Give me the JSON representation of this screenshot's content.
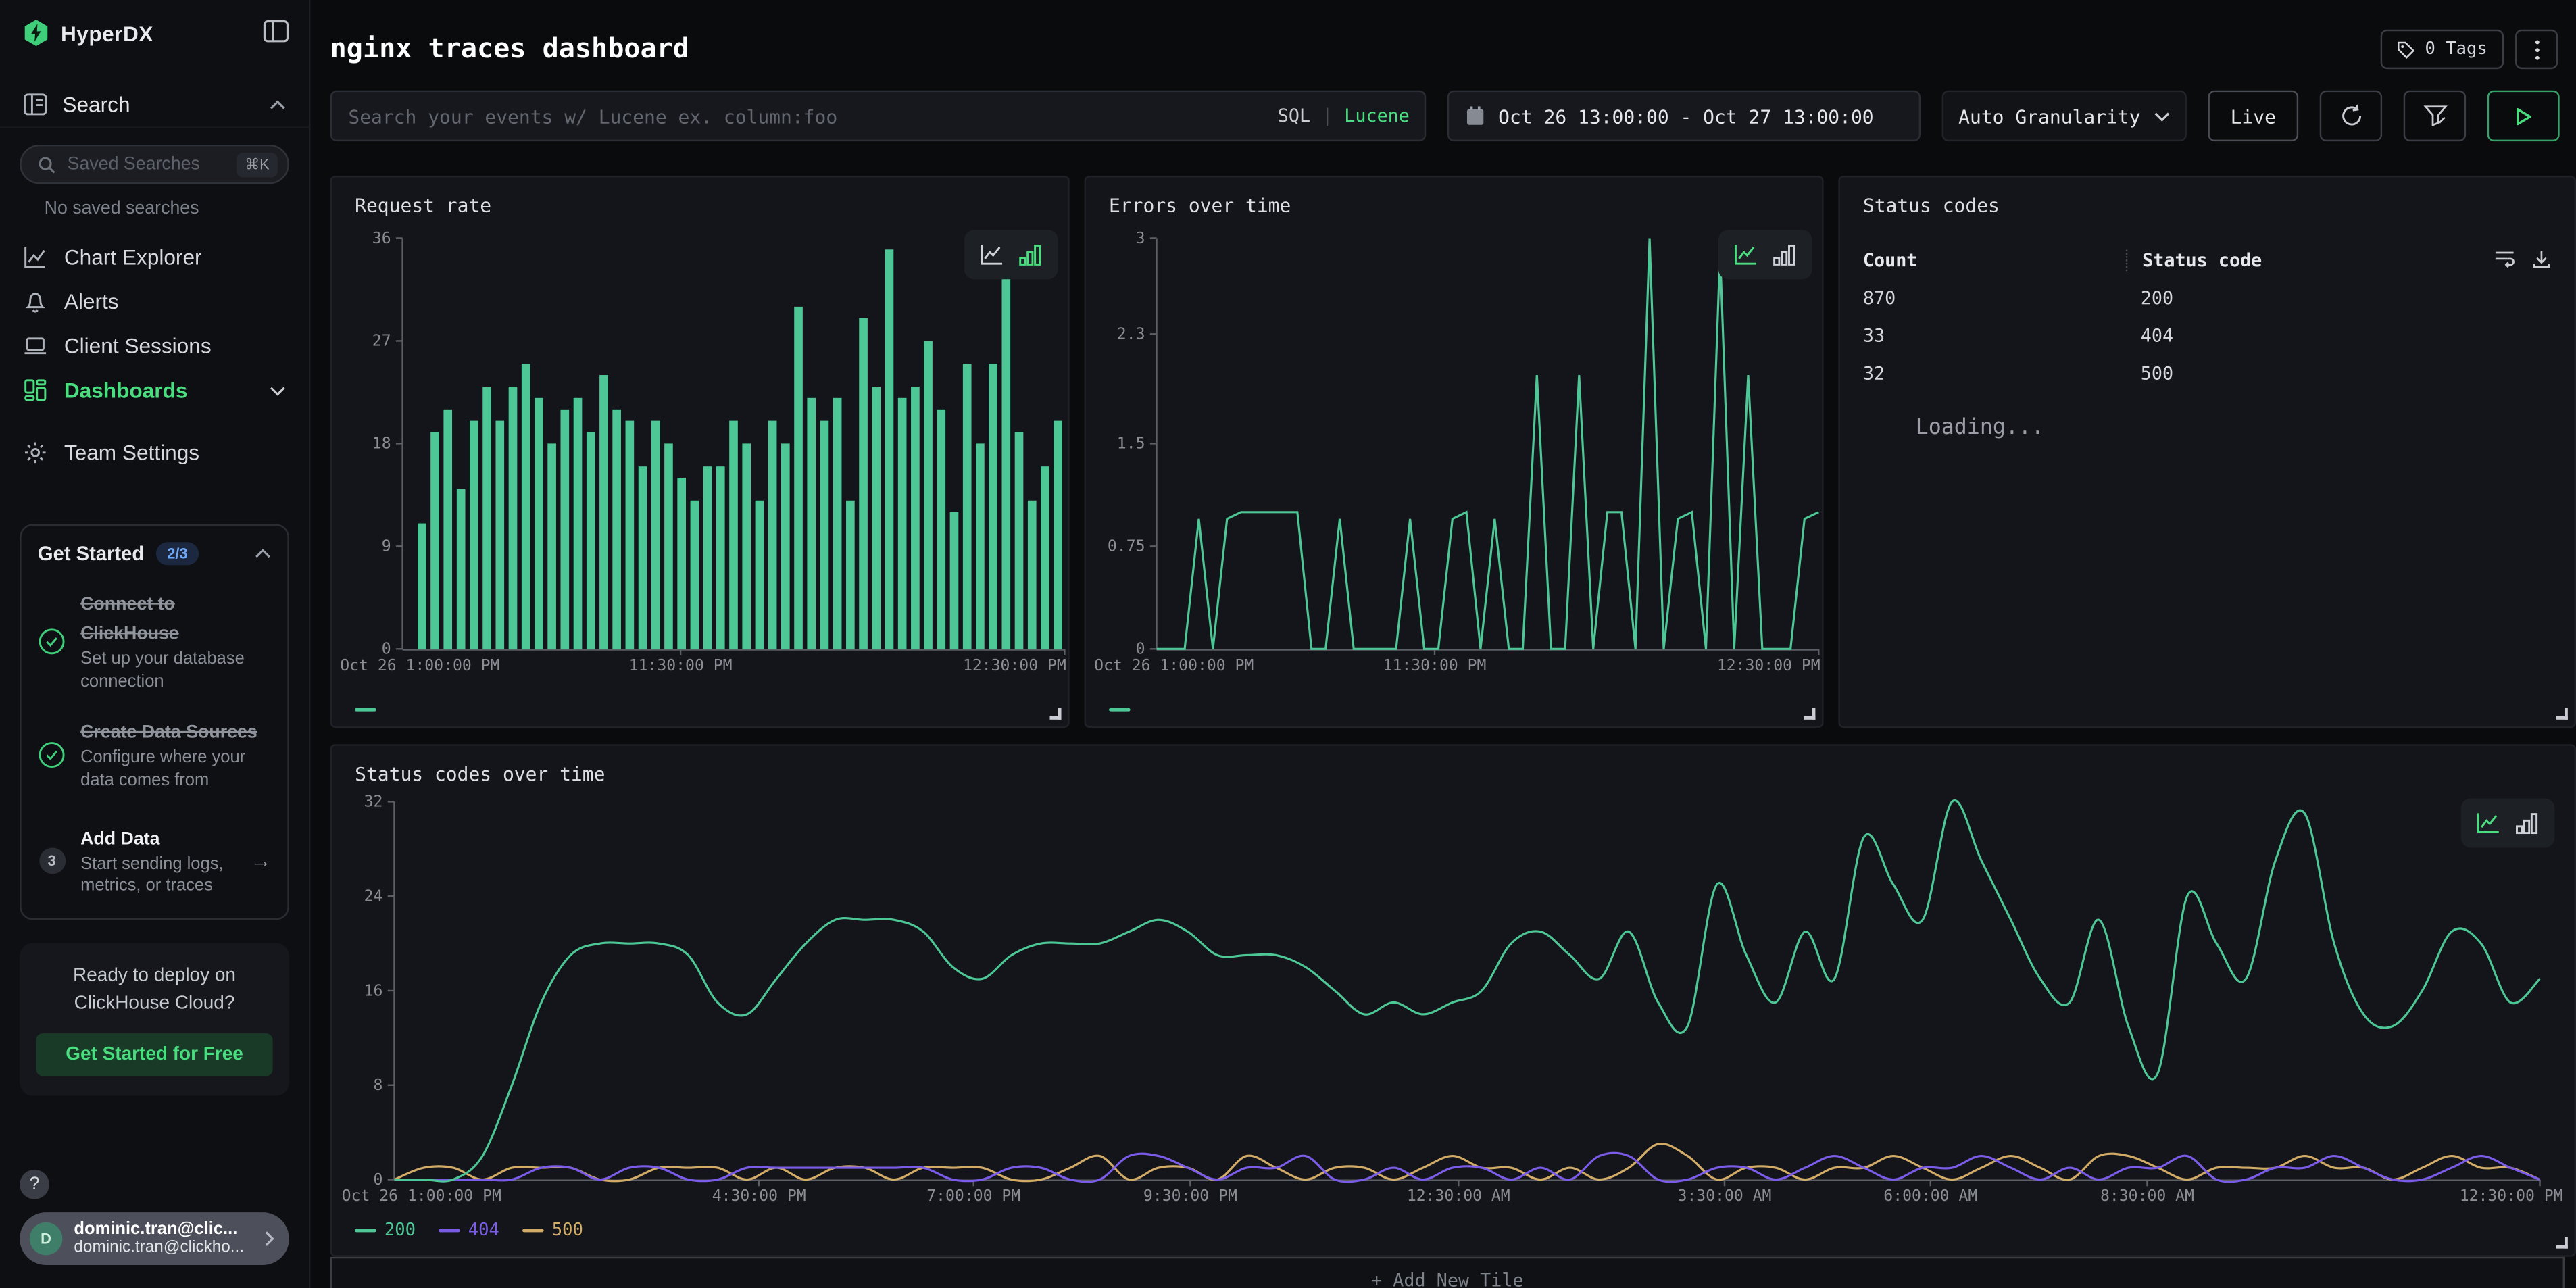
{
  "app": {
    "brand": "HyperDX"
  },
  "sidebar": {
    "search_label": "Search",
    "saved_placeholder": "Saved Searches",
    "shortcut": "⌘K",
    "no_saved": "No saved searches",
    "items": [
      {
        "label": "Chart Explorer"
      },
      {
        "label": "Alerts"
      },
      {
        "label": "Client Sessions"
      },
      {
        "label": "Dashboards",
        "active": true
      },
      {
        "label": "Team Settings"
      }
    ],
    "get_started": {
      "title": "Get Started",
      "badge": "2/3",
      "steps": [
        {
          "title": "Connect to ClickHouse",
          "desc": "Set up your database connection",
          "done": true
        },
        {
          "title": "Create Data Sources",
          "desc": "Configure where your data comes from",
          "done": true
        },
        {
          "title": "Add Data",
          "desc": "Start sending logs, metrics, or traces",
          "num": "3",
          "arrow": "→"
        }
      ]
    },
    "cloud": {
      "line1": "Ready to deploy on",
      "line2": "ClickHouse Cloud?",
      "cta": "Get Started for Free"
    },
    "help": "?",
    "user": {
      "initial": "D",
      "name": "dominic.tran@clic...",
      "email": "dominic.tran@clickho..."
    }
  },
  "header": {
    "title": "nginx traces dashboard",
    "tags": "0 Tags"
  },
  "controls": {
    "search": {
      "placeholder": "Search your events w/ Lucene ex. column:foo",
      "sql": "SQL",
      "divider": "|",
      "lucene": "Lucene"
    },
    "date": "Oct 26 13:00:00 - Oct 27 13:00:00",
    "granularity": "Auto Granularity",
    "live": "Live"
  },
  "footer": {
    "add_tile": "+ Add New Tile"
  },
  "colors": {
    "green": "#4cc795",
    "purple": "#7a5ce8",
    "gold": "#d2ab67",
    "accent": "#4ade80"
  },
  "chart_data": [
    {
      "type": "bar",
      "title": "Request rate",
      "color": "#4cc795",
      "ylim": [
        0,
        36
      ],
      "yticks": [
        {
          "v": 0,
          "t": "0"
        },
        {
          "v": 9,
          "t": "9"
        },
        {
          "v": 18,
          "t": "18"
        },
        {
          "v": 27,
          "t": "27"
        },
        {
          "v": 36,
          "t": "36"
        }
      ],
      "xticks": [
        {
          "t": "Oct 26 1:00:00 PM",
          "pos": 0,
          "align": "start"
        },
        {
          "t": "11:30:00 PM",
          "pos": 0.42
        },
        {
          "t": "12:30:00 PM",
          "pos": 1,
          "align": "end"
        }
      ],
      "values": [
        0,
        11,
        19,
        21,
        14,
        20,
        23,
        20,
        23,
        25,
        22,
        18,
        21,
        22,
        19,
        24,
        21,
        20,
        16,
        20,
        18,
        15,
        13,
        16,
        16,
        20,
        18,
        13,
        20,
        18,
        30,
        22,
        20,
        22,
        13,
        29,
        23,
        35,
        22,
        23,
        27,
        21,
        12,
        25,
        18,
        25,
        33,
        19,
        13,
        16,
        20
      ],
      "legend": [
        {
          "label": "",
          "color": "#4cc795"
        }
      ]
    },
    {
      "type": "line",
      "title": "Errors over time",
      "color": "#4cc795",
      "ylim": [
        0,
        3
      ],
      "yticks": [
        {
          "v": 0,
          "t": "0"
        },
        {
          "v": 0.75,
          "t": "0.75"
        },
        {
          "v": 1.5,
          "t": "1.5"
        },
        {
          "v": 2.3,
          "t": "2.3"
        },
        {
          "v": 3,
          "t": "3"
        }
      ],
      "xticks": [
        {
          "t": "Oct 26 1:00:00 PM",
          "pos": 0,
          "align": "start"
        },
        {
          "t": "11:30:00 PM",
          "pos": 0.42
        },
        {
          "t": "12:30:00 PM",
          "pos": 1,
          "align": "end"
        }
      ],
      "values": [
        0,
        0,
        0,
        0.95,
        0,
        0.95,
        1,
        1,
        1,
        1,
        1,
        0,
        0,
        0.95,
        0,
        0,
        0,
        0,
        0.95,
        0,
        0,
        0.95,
        1,
        0,
        0.95,
        0,
        0,
        2,
        0,
        0,
        2,
        0,
        1,
        1,
        0,
        3,
        0,
        0.95,
        1,
        0,
        2.9,
        0,
        2,
        0,
        0,
        0,
        0.95,
        1
      ],
      "legend": [
        {
          "label": "",
          "color": "#4cc795"
        }
      ]
    },
    {
      "type": "table",
      "title": "Status codes",
      "columns": [
        "Count",
        "Status code"
      ],
      "rows": [
        [
          "870",
          "200"
        ],
        [
          "33",
          "404"
        ],
        [
          "32",
          "500"
        ]
      ],
      "status": "Loading..."
    },
    {
      "type": "line",
      "title": "Status codes over time",
      "smooth": true,
      "ylim": [
        0,
        32
      ],
      "yticks": [
        {
          "v": 0,
          "t": "0"
        },
        {
          "v": 8,
          "t": "8"
        },
        {
          "v": 16,
          "t": "16"
        },
        {
          "v": 24,
          "t": "24"
        },
        {
          "v": 32,
          "t": "32"
        }
      ],
      "xticks": [
        {
          "t": "Oct 26 1:00:00 PM",
          "pos": 0,
          "align": "start"
        },
        {
          "t": "4:30:00 PM",
          "pos": 0.17
        },
        {
          "t": "7:00:00 PM",
          "pos": 0.27
        },
        {
          "t": "9:30:00 PM",
          "pos": 0.371
        },
        {
          "t": "12:30:00 AM",
          "pos": 0.496
        },
        {
          "t": "3:30:00 AM",
          "pos": 0.62
        },
        {
          "t": "6:00:00 AM",
          "pos": 0.716
        },
        {
          "t": "8:30:00 AM",
          "pos": 0.817
        },
        {
          "t": "12:30:00 PM",
          "pos": 1,
          "align": "end"
        }
      ],
      "series": [
        {
          "name": "200",
          "color": "#4cc795",
          "values": [
            0,
            0,
            0,
            2,
            8,
            15,
            19,
            20,
            20,
            20,
            19,
            15,
            14,
            17,
            20,
            22,
            22,
            22,
            21,
            18,
            17,
            19,
            20,
            20,
            20,
            21,
            22,
            21,
            19,
            19,
            19,
            18,
            16,
            14,
            15,
            14,
            15,
            16,
            20,
            21,
            19,
            17,
            21,
            15,
            13,
            25,
            19,
            15,
            21,
            17,
            29,
            25,
            22,
            32,
            27,
            22,
            17,
            15,
            22,
            13,
            9,
            24,
            20,
            17,
            27,
            31,
            20,
            14,
            13,
            16,
            21,
            20,
            15,
            17
          ]
        },
        {
          "name": "404",
          "color": "#7a5ce8",
          "values": [
            0,
            0,
            0,
            0,
            0,
            1,
            1,
            0,
            1,
            1,
            0,
            0,
            1,
            1,
            1,
            1,
            1,
            1,
            1,
            0,
            0,
            1,
            1,
            0,
            0,
            2,
            2,
            1,
            0,
            1,
            1,
            2,
            0,
            0,
            1,
            0,
            1,
            1,
            0,
            1,
            0,
            2,
            2,
            0,
            0,
            1,
            1,
            0,
            1,
            2,
            1,
            0,
            1,
            1,
            2,
            1,
            0,
            1,
            0,
            1,
            1,
            2,
            0,
            0,
            1,
            1,
            2,
            1,
            0,
            0,
            1,
            2,
            1,
            0
          ]
        },
        {
          "name": "500",
          "color": "#d2ab67",
          "values": [
            0,
            1,
            1,
            0,
            1,
            1,
            1,
            0,
            0,
            1,
            1,
            1,
            0,
            1,
            0,
            1,
            1,
            0,
            1,
            1,
            1,
            0,
            0,
            1,
            2,
            0,
            1,
            1,
            0,
            2,
            1,
            0,
            1,
            1,
            0,
            1,
            2,
            1,
            1,
            0,
            1,
            0,
            1,
            3,
            2,
            0,
            1,
            1,
            0,
            1,
            1,
            2,
            1,
            0,
            1,
            2,
            1,
            0,
            2,
            2,
            1,
            0,
            1,
            1,
            1,
            2,
            1,
            1,
            0,
            1,
            2,
            1,
            1,
            0
          ]
        }
      ]
    }
  ]
}
